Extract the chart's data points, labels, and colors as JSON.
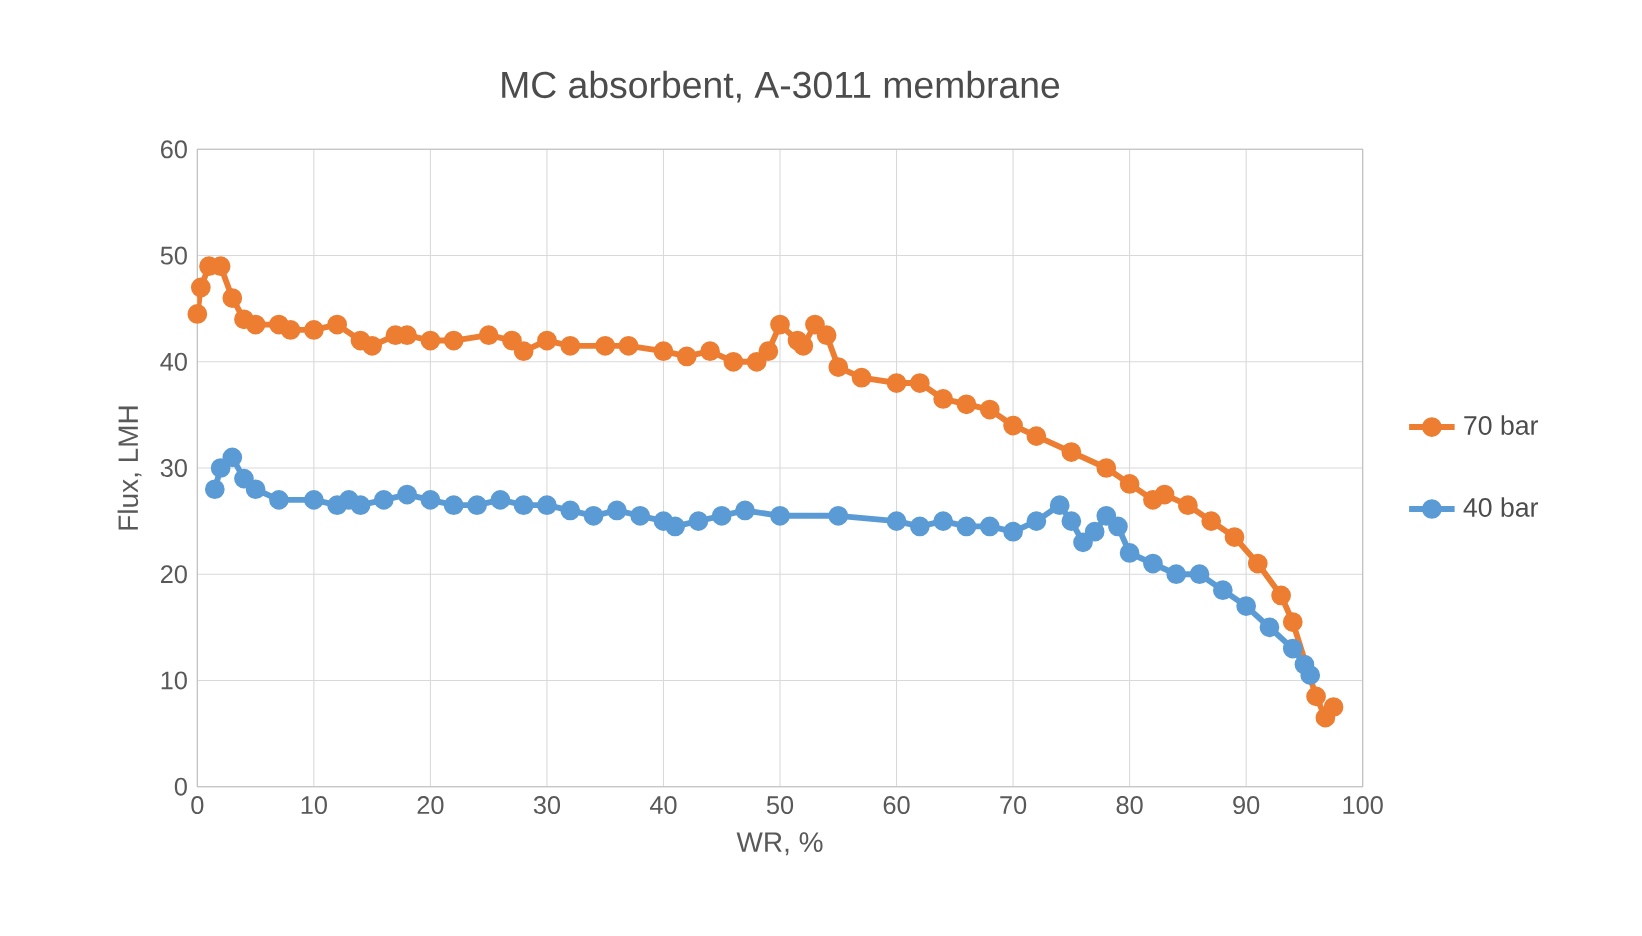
{
  "chart_data": {
    "type": "line",
    "title": "MC absorbent, A-3011 membrane",
    "xlabel": "WR, %",
    "ylabel": "Flux, LMH",
    "xlim": [
      0,
      100
    ],
    "ylim": [
      0,
      60
    ],
    "xticks": [
      0,
      10,
      20,
      30,
      40,
      50,
      60,
      70,
      80,
      90,
      100
    ],
    "yticks": [
      0,
      10,
      20,
      30,
      40,
      50,
      60
    ],
    "grid": true,
    "legend": "right",
    "marker": "circle",
    "line_style": "solid",
    "series": [
      {
        "name": "70 bar",
        "color": "#ed7d31",
        "x": [
          0,
          0.3,
          1,
          2,
          3,
          4,
          5,
          7,
          8,
          10,
          12,
          14,
          15,
          17,
          18,
          20,
          22,
          25,
          27,
          28,
          30,
          32,
          35,
          37,
          40,
          42,
          44,
          46,
          48,
          49,
          50,
          51.5,
          52,
          53,
          54,
          55,
          57,
          60,
          62,
          64,
          66,
          68,
          70,
          72,
          75,
          78,
          80,
          82,
          83,
          85,
          87,
          89,
          91,
          93,
          94,
          96,
          96.8,
          97.5
        ],
        "values": [
          44.5,
          47,
          49,
          49,
          46,
          44,
          43.5,
          43.5,
          43,
          43,
          43.5,
          42,
          41.5,
          42.5,
          42.5,
          42,
          42,
          42.5,
          42,
          41,
          42,
          41.5,
          41.5,
          41.5,
          41,
          40.5,
          41,
          40,
          40,
          41,
          43.5,
          42,
          41.5,
          43.5,
          42.5,
          39.5,
          38.5,
          38,
          38,
          36.5,
          36,
          35.5,
          34,
          33,
          31.5,
          30,
          28.5,
          27,
          27.5,
          26.5,
          25,
          23.5,
          21,
          18,
          15.5,
          8.5,
          6.5,
          7.5
        ]
      },
      {
        "name": "40 bar",
        "color": "#5b9bd5",
        "x": [
          1.5,
          2,
          3,
          4,
          5,
          7,
          10,
          12,
          13,
          14,
          16,
          18,
          20,
          22,
          24,
          26,
          28,
          30,
          32,
          34,
          36,
          38,
          40,
          41,
          43,
          45,
          47,
          50,
          55,
          60,
          62,
          64,
          66,
          68,
          70,
          72,
          74,
          75,
          76,
          77,
          78,
          79,
          80,
          82,
          84,
          86,
          88,
          90,
          92,
          94,
          95,
          95.5
        ],
        "values": [
          28,
          30,
          31,
          29,
          28,
          27,
          27,
          26.5,
          27,
          26.5,
          27,
          27.5,
          27,
          26.5,
          26.5,
          27,
          26.5,
          26.5,
          26,
          25.5,
          26,
          25.5,
          25,
          24.5,
          25,
          25.5,
          26,
          25.5,
          25.5,
          25,
          24.5,
          25,
          24.5,
          24.5,
          24,
          25,
          26.5,
          25,
          23,
          24,
          25.5,
          24.5,
          22,
          21,
          20,
          20,
          18.5,
          17,
          15,
          13,
          11.5,
          10.5
        ]
      }
    ]
  }
}
